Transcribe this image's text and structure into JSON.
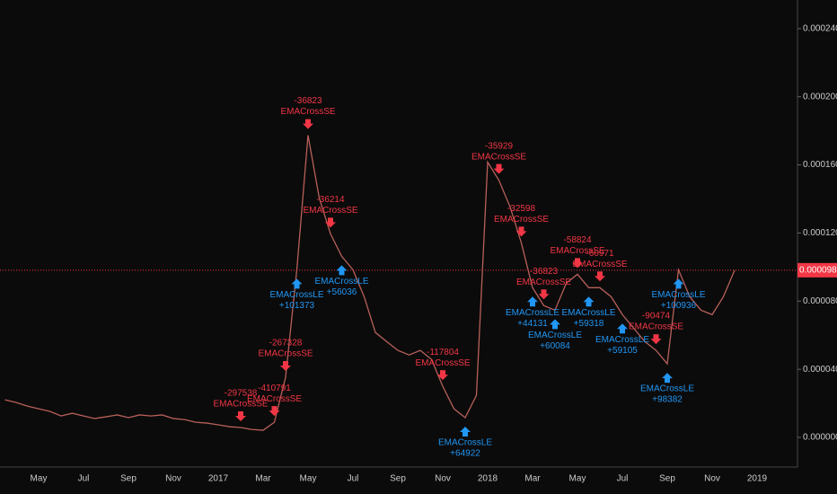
{
  "chart_data": {
    "type": "line",
    "categories": [
      null,
      null,
      null,
      "May",
      null,
      null,
      null,
      "Jul",
      null,
      null,
      null,
      "Sep",
      null,
      null,
      null,
      "Nov",
      null,
      null,
      null,
      "2017",
      null,
      null,
      null,
      "Mar",
      null,
      null,
      null,
      "May",
      null,
      null,
      null,
      "Jul",
      null,
      null,
      null,
      "Sep",
      null,
      null,
      null,
      "Nov",
      null,
      null,
      null,
      "2018",
      null,
      null,
      null,
      "Mar",
      null,
      null,
      null,
      "May",
      null,
      null,
      null,
      "Jul",
      null,
      null,
      null,
      "Sep",
      null,
      null,
      null,
      "Nov",
      null,
      null,
      null,
      "2019",
      null
    ],
    "series": [
      {
        "color": "#b8605a",
        "values": [
          2.21e-05,
          2.05e-05,
          1.84e-05,
          1.68e-05,
          1.53e-05,
          1.26e-05,
          1.42e-05,
          1.26e-05,
          1.11e-05,
          1.21e-05,
          1.32e-05,
          1.16e-05,
          1.32e-05,
          1.26e-05,
          1.32e-05,
          1.11e-05,
          1.05e-05,
          8.9e-06,
          8.4e-06,
          7.4e-06,
          6.3e-06,
          5.8e-06,
          4.7e-06,
          4.2e-06,
          8.9e-06,
          3.53e-05,
          9.84e-05,
          0.0001774,
          0.0001405,
          0.0001195,
          0.0001063,
          9.84e-05,
          8.26e-05,
          6.16e-05,
          5.63e-05,
          5.11e-05,
          4.84e-05,
          5.11e-05,
          4.58e-05,
          3e-05,
          1.68e-05,
          1.16e-05,
          2.47e-05,
          0.0001616,
          0.000151,
          0.0001353,
          0.0001142,
          8.79e-05,
          7.74e-05,
          7.47e-05,
          9.05e-05,
          9.58e-05,
          8.79e-05,
          8.79e-05,
          8.26e-05,
          7.21e-05,
          6.42e-05,
          5.63e-05,
          5.11e-05,
          4.32e-05,
          9.84e-05,
          8.26e-05,
          7.47e-05,
          7.21e-05,
          8.26e-05,
          9.816e-05,
          null,
          null,
          null
        ]
      }
    ],
    "ylim": [
      -1.74e-05,
      0.0002568
    ],
    "yticks": [
      {
        "value": 0,
        "label": "0.00000000"
      },
      {
        "value": 4e-05,
        "label": "0.00004000"
      },
      {
        "value": 8e-05,
        "label": "0.00008000"
      },
      {
        "value": 0.00012,
        "label": "0.00012000"
      },
      {
        "value": 0.00016,
        "label": "0.00016000"
      },
      {
        "value": 0.0002,
        "label": "0.00020000"
      },
      {
        "value": 0.00024,
        "label": "0.00024000"
      }
    ],
    "price_line": {
      "value": 9.816e-05,
      "label": "0.00009816",
      "color": "#f23645"
    },
    "signals": [
      {
        "index": 21,
        "side": "short",
        "label": "EMACrossSE",
        "pnl": "-297538"
      },
      {
        "index": 24,
        "side": "short",
        "label": "EMACrossSE",
        "pnl": "-410791"
      },
      {
        "index": 25,
        "side": "short",
        "label": "EMACrossSE",
        "pnl": "-267328"
      },
      {
        "index": 27,
        "side": "short",
        "label": "EMACrossSE",
        "pnl": "-36823"
      },
      {
        "index": 29,
        "side": "short",
        "label": "EMACrossSE",
        "pnl": "-36214"
      },
      {
        "index": 39,
        "side": "short",
        "label": "EMACrossSE",
        "pnl": "-117804"
      },
      {
        "index": 44,
        "side": "short",
        "label": "EMACrossSE",
        "pnl": "-35929"
      },
      {
        "index": 46,
        "side": "short",
        "label": "EMACrossSE",
        "pnl": "-32598"
      },
      {
        "index": 48,
        "side": "short",
        "label": "EMACrossSE",
        "pnl": "-36823"
      },
      {
        "index": 51,
        "side": "short",
        "label": "EMACrossSE",
        "pnl": "-58824"
      },
      {
        "index": 53,
        "side": "short",
        "label": "EMACrossSE",
        "pnl": "-60971"
      },
      {
        "index": 58,
        "side": "short",
        "label": "EMACrossSE",
        "pnl": "-90474"
      },
      {
        "index": 26,
        "side": "long",
        "label": "EMACrossLE",
        "pnl": "+101373"
      },
      {
        "index": 30,
        "side": "long",
        "label": "EMACrossLE",
        "pnl": "+56036"
      },
      {
        "index": 41,
        "side": "long",
        "label": "EMACrossLE",
        "pnl": "+64922"
      },
      {
        "index": 47,
        "side": "long",
        "label": "EMACrossLE",
        "pnl": "+44131"
      },
      {
        "index": 49,
        "side": "long",
        "label": "EMACrossLE",
        "pnl": "+60084"
      },
      {
        "index": 52,
        "side": "long",
        "label": "EMACrossLE",
        "pnl": "+59318"
      },
      {
        "index": 55,
        "side": "long",
        "label": "EMACrossLE",
        "pnl": "+59105"
      },
      {
        "index": 59,
        "side": "long",
        "label": "EMACrossLE",
        "pnl": "+98382"
      },
      {
        "index": 60,
        "side": "long",
        "label": "EMACrossLE",
        "pnl": "+100936"
      }
    ]
  }
}
